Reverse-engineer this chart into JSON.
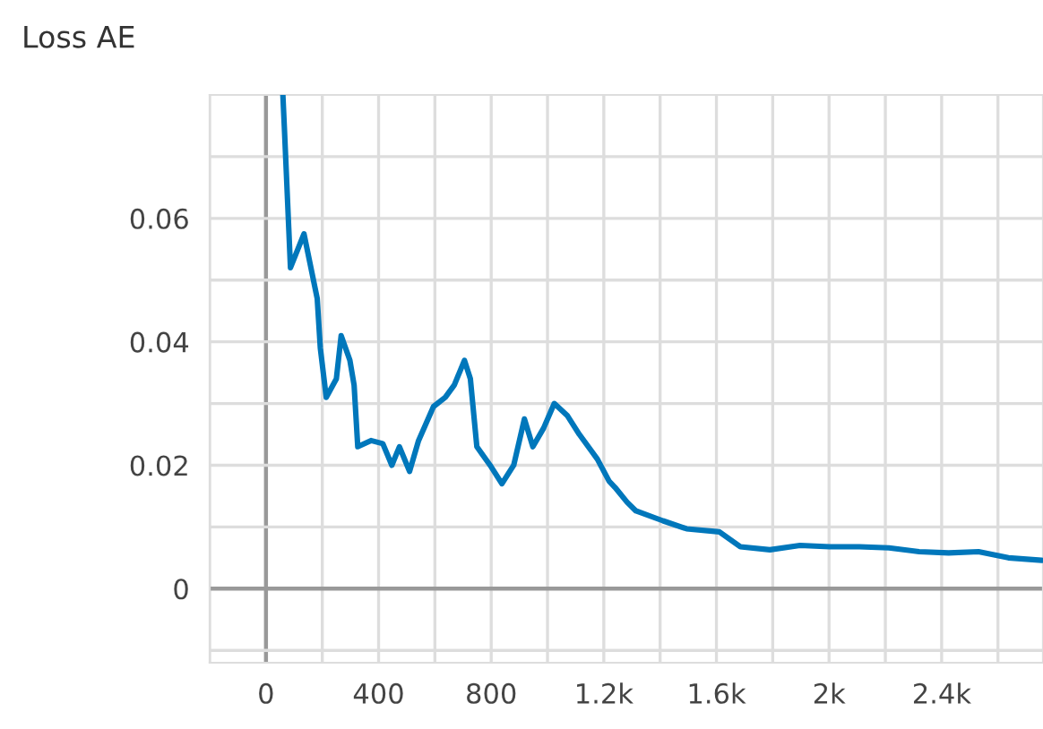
{
  "chart_data": {
    "type": "line",
    "title": "Loss AE",
    "series": [
      {
        "color": "#0077bb",
        "x": [
          60,
          65,
          87,
          135,
          182,
          193,
          214,
          250,
          267,
          298,
          313,
          326,
          373,
          415,
          447,
          474,
          510,
          542,
          595,
          637,
          669,
          705,
          726,
          749,
          796,
          838,
          880,
          918,
          948,
          986,
          1024,
          1071,
          1113,
          1177,
          1219,
          1240,
          1283,
          1314,
          1410,
          1494,
          1611,
          1685,
          1790,
          1897,
          2002,
          2108,
          2213,
          2320,
          2425,
          2531,
          2637,
          2755
        ],
        "values": [
          0.08,
          0.075,
          0.052,
          0.0575,
          0.047,
          0.039,
          0.031,
          0.034,
          0.041,
          0.037,
          0.033,
          0.023,
          0.024,
          0.0235,
          0.02,
          0.023,
          0.019,
          0.024,
          0.0295,
          0.031,
          0.033,
          0.037,
          0.034,
          0.023,
          0.02,
          0.017,
          0.02,
          0.0275,
          0.023,
          0.026,
          0.03,
          0.028,
          0.025,
          0.021,
          0.0174,
          0.0164,
          0.014,
          0.0126,
          0.011,
          0.0097,
          0.0092,
          0.0068,
          0.0063,
          0.007,
          0.0068,
          0.0068,
          0.0066,
          0.006,
          0.0058,
          0.006,
          0.005,
          0.0046
        ]
      }
    ],
    "xlim": [
      -200,
      2760
    ],
    "ylim": [
      -0.012,
      0.08
    ],
    "xticks": [
      {
        "value": -200,
        "label": null
      },
      0,
      {
        "value": 200,
        "label": null
      },
      400,
      {
        "value": 600,
        "label": null
      },
      800,
      {
        "value": 1000,
        "label": null
      },
      {
        "value": 1200,
        "label": "1.2k"
      },
      {
        "value": 1400,
        "label": null
      },
      {
        "value": 1600,
        "label": "1.6k"
      },
      {
        "value": 1800,
        "label": null
      },
      {
        "value": 2000,
        "label": "2k"
      },
      {
        "value": 2200,
        "label": null
      },
      {
        "value": 2400,
        "label": "2.4k"
      },
      {
        "value": 2600,
        "label": null
      }
    ],
    "yticks": [
      {
        "value": -0.01,
        "label": null
      },
      0,
      {
        "value": 0.01,
        "label": null
      },
      0.02,
      {
        "value": 0.03,
        "label": null
      },
      0.04,
      {
        "value": 0.05,
        "label": null
      },
      0.06,
      {
        "value": 0.07,
        "label": null
      }
    ],
    "grid": true,
    "legend": false,
    "marker": "none",
    "line_style": "solid"
  }
}
